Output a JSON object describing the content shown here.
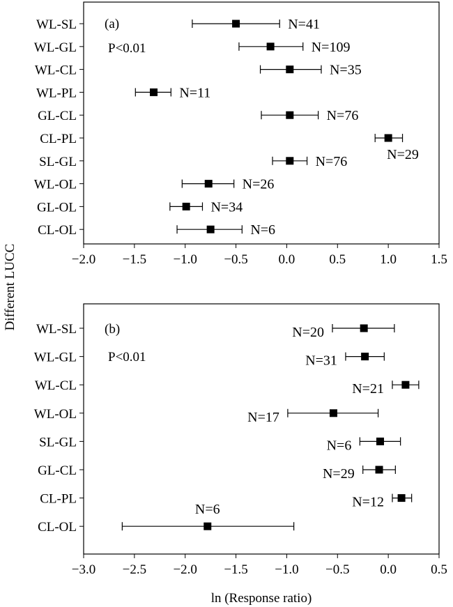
{
  "y_axis_title": "Different LUCC",
  "x_axis_title": "ln (Response ratio)",
  "chart_data": [
    {
      "type": "scatter",
      "panel_label": "(a)",
      "annotation": "P<0.01",
      "xlim": [
        -2.0,
        1.5
      ],
      "x_ticks": [
        "−2.0",
        "−1.5",
        "−1.0",
        "−0.5",
        "0.0",
        "0.5",
        "1.0",
        "1.5"
      ],
      "x_tick_values": [
        -2.0,
        -1.5,
        -1.0,
        -0.5,
        0.0,
        0.5,
        1.0,
        1.5
      ],
      "categories": [
        "WL-SL",
        "WL-GL",
        "WL-CL",
        "WL-PL",
        "GL-CL",
        "CL-PL",
        "SL-GL",
        "WL-OL",
        "GL-OL",
        "CL-OL"
      ],
      "points": [
        {
          "category": "WL-SL",
          "mean": -0.5,
          "lower": -0.93,
          "upper": -0.07,
          "n_label": "N=41",
          "label_side": "right"
        },
        {
          "category": "WL-GL",
          "mean": -0.16,
          "lower": -0.47,
          "upper": 0.16,
          "n_label": "N=109",
          "label_side": "right"
        },
        {
          "category": "WL-CL",
          "mean": 0.03,
          "lower": -0.26,
          "upper": 0.34,
          "n_label": "N=35",
          "label_side": "right"
        },
        {
          "category": "WL-PL",
          "mean": -1.31,
          "lower": -1.49,
          "upper": -1.14,
          "n_label": "N=11",
          "label_side": "right"
        },
        {
          "category": "GL-CL",
          "mean": 0.03,
          "lower": -0.25,
          "upper": 0.31,
          "n_label": "N=76",
          "label_side": "right"
        },
        {
          "category": "CL-PL",
          "mean": 1.0,
          "lower": 0.87,
          "upper": 1.14,
          "n_label": "N=29",
          "label_side": "below"
        },
        {
          "category": "SL-GL",
          "mean": 0.03,
          "lower": -0.14,
          "upper": 0.2,
          "n_label": "N=76",
          "label_side": "right"
        },
        {
          "category": "WL-OL",
          "mean": -0.77,
          "lower": -1.03,
          "upper": -0.52,
          "n_label": "N=26",
          "label_side": "right"
        },
        {
          "category": "GL-OL",
          "mean": -0.99,
          "lower": -1.15,
          "upper": -0.83,
          "n_label": "N=34",
          "label_side": "right"
        },
        {
          "category": "CL-OL",
          "mean": -0.75,
          "lower": -1.08,
          "upper": -0.44,
          "n_label": "N=6",
          "label_side": "right"
        }
      ]
    },
    {
      "type": "scatter",
      "panel_label": "(b)",
      "annotation": "P<0.01",
      "xlim": [
        -3.0,
        0.5
      ],
      "x_ticks": [
        "−3.0",
        "−2.5",
        "−2.0",
        "−1.5",
        "−1.0",
        "−0.5",
        "0.0",
        "0.5"
      ],
      "x_tick_values": [
        -3.0,
        -2.5,
        -2.0,
        -1.5,
        -1.0,
        -0.5,
        0.0,
        0.5
      ],
      "categories": [
        "WL-SL",
        "WL-GL",
        "WL-CL",
        "WL-OL",
        "SL-GL",
        "GL-CL",
        "CL-PL",
        "CL-OL"
      ],
      "points": [
        {
          "category": "WL-SL",
          "mean": -0.24,
          "lower": -0.55,
          "upper": 0.06,
          "n_label": "N=20",
          "label_side": "left"
        },
        {
          "category": "WL-GL",
          "mean": -0.23,
          "lower": -0.42,
          "upper": -0.04,
          "n_label": "N=31",
          "label_side": "left"
        },
        {
          "category": "WL-CL",
          "mean": 0.17,
          "lower": 0.04,
          "upper": 0.3,
          "n_label": "N=21",
          "label_side": "left"
        },
        {
          "category": "WL-OL",
          "mean": -0.54,
          "lower": -0.99,
          "upper": -0.1,
          "n_label": "N=17",
          "label_side": "left"
        },
        {
          "category": "SL-GL",
          "mean": -0.08,
          "lower": -0.28,
          "upper": 0.12,
          "n_label": "N=6",
          "label_side": "left"
        },
        {
          "category": "GL-CL",
          "mean": -0.09,
          "lower": -0.25,
          "upper": 0.07,
          "n_label": "N=29",
          "label_side": "left"
        },
        {
          "category": "CL-PL",
          "mean": 0.13,
          "lower": 0.04,
          "upper": 0.23,
          "n_label": "N=12",
          "label_side": "left"
        },
        {
          "category": "CL-OL",
          "mean": -1.78,
          "lower": -2.62,
          "upper": -0.93,
          "n_label": "N=6",
          "label_side": "above"
        }
      ]
    }
  ]
}
